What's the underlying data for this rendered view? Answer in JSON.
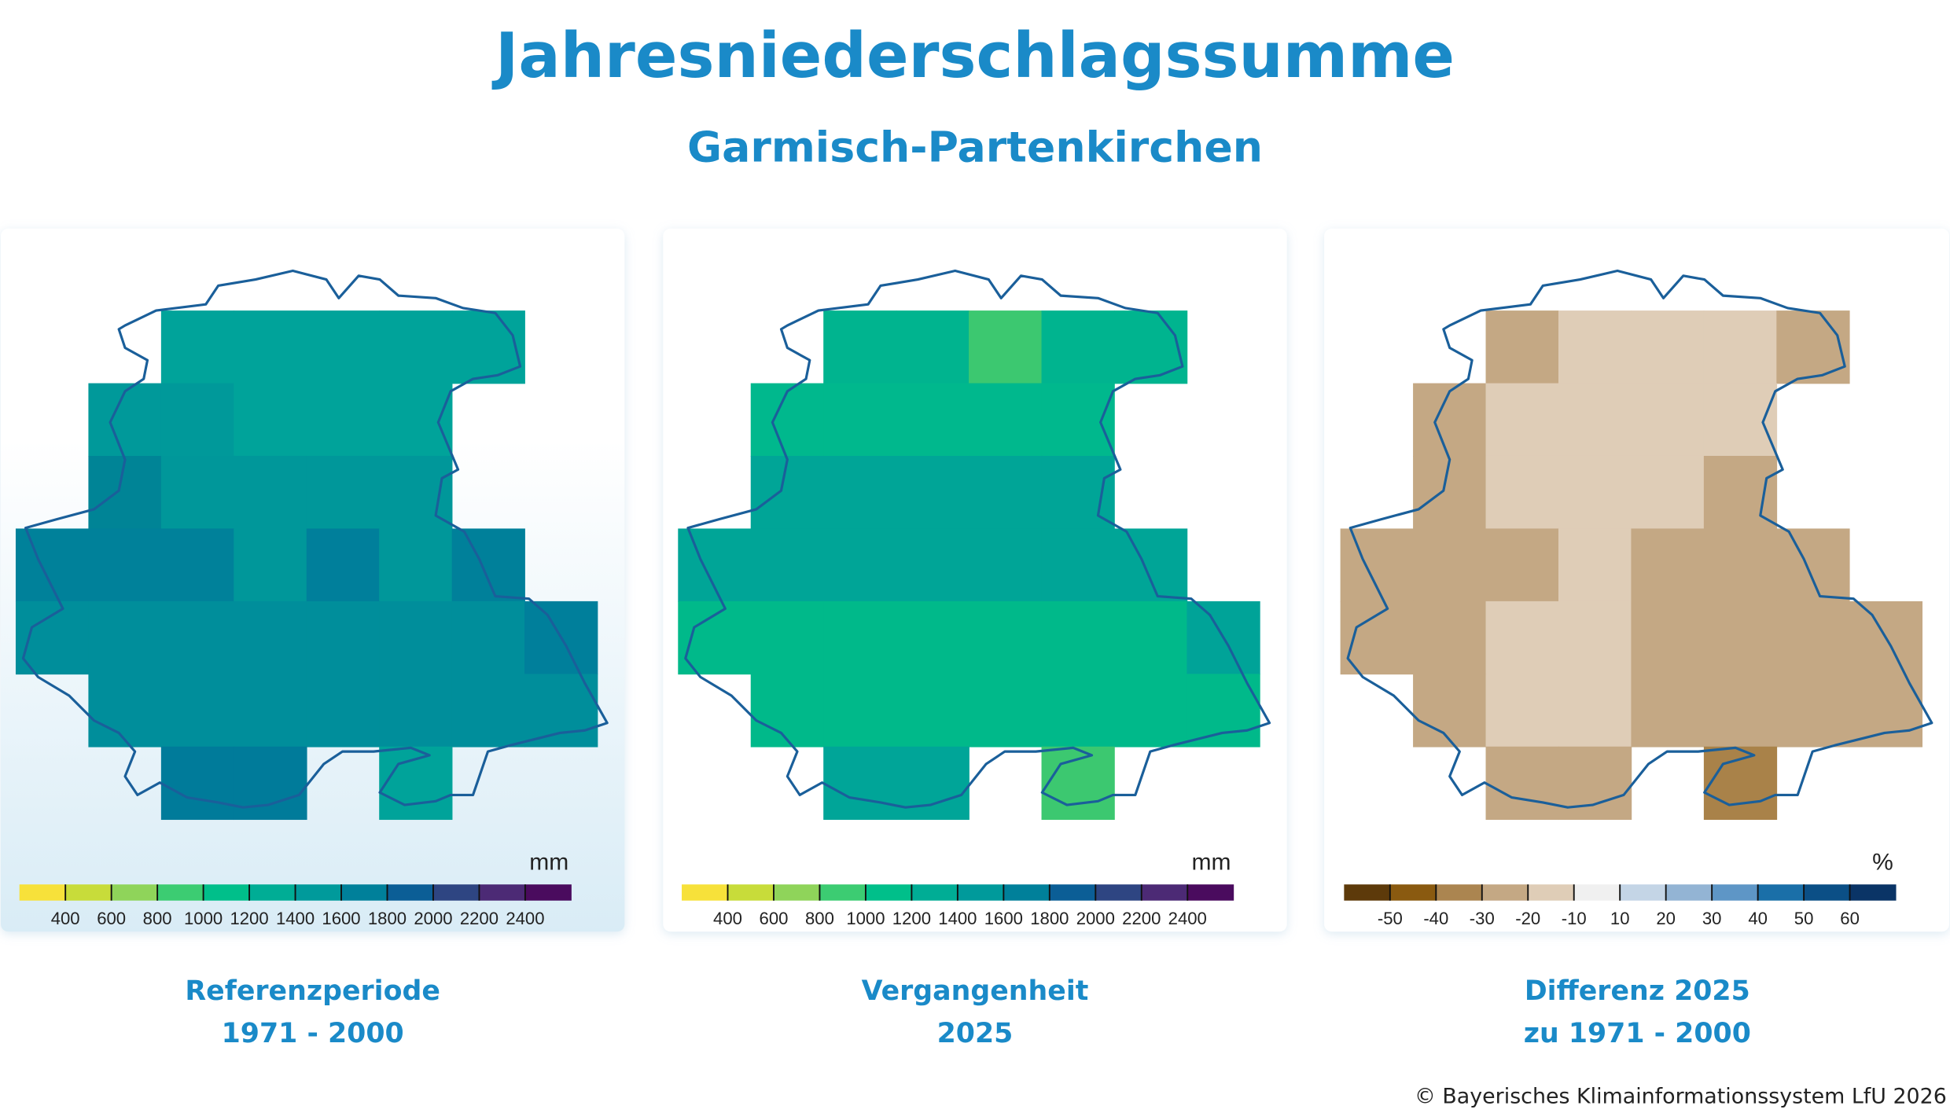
{
  "title": "Jahresniederschlagssumme",
  "subtitle": "Garmisch-Partenkirchen",
  "panels": [
    {
      "caption": [
        "Referenzperiode",
        "1971 - 2000"
      ],
      "unit": "mm",
      "colorbar": {
        "colors": [
          "#f7e13a",
          "#c8dc3a",
          "#8fd45a",
          "#3ccc72",
          "#00bf8a",
          "#00ad95",
          "#009a9b",
          "#00809a",
          "#0b5e96",
          "#2e4582",
          "#4c2a75",
          "#4a0b5e"
        ],
        "ticks": [
          400,
          600,
          800,
          1000,
          1200,
          1400,
          1600,
          1800,
          2000,
          2200,
          2400
        ]
      },
      "grid": [
        [
          null,
          null,
          "#00a39a",
          "#00a39a",
          "#00a39a",
          "#00a39a",
          "#00a39a",
          null
        ],
        [
          null,
          "#00999a",
          "#00999a",
          "#00a39a",
          "#00a39a",
          "#00a39a",
          null,
          null
        ],
        [
          null,
          "#008496",
          "#00979a",
          "#00979a",
          "#00979a",
          "#00979a",
          null,
          null
        ],
        [
          "#00819a",
          "#00819a",
          "#00819a",
          "#00979a",
          "#007f9b",
          "#00979a",
          "#00809a",
          null
        ],
        [
          "#008e9b",
          "#008e9b",
          "#008e9b",
          "#008e9b",
          "#008e9b",
          "#008e9b",
          "#008e9b",
          "#007f9b"
        ],
        [
          null,
          "#008e9b",
          "#008e9b",
          "#008e9b",
          "#008e9b",
          "#008e9b",
          "#008e9b",
          "#008e9b"
        ],
        [
          null,
          null,
          "#007b9a",
          "#007b9a",
          null,
          "#00a39a",
          null,
          null
        ]
      ]
    },
    {
      "caption": [
        "Vergangenheit",
        "2025"
      ],
      "unit": "mm",
      "colorbar": {
        "colors": [
          "#f7e13a",
          "#c8dc3a",
          "#8fd45a",
          "#3ccc72",
          "#00bf8a",
          "#00ad95",
          "#009a9b",
          "#00809a",
          "#0b5e96",
          "#2e4582",
          "#4c2a75",
          "#4a0b5e"
        ],
        "ticks": [
          400,
          600,
          800,
          1000,
          1200,
          1400,
          1600,
          1800,
          2000,
          2200,
          2400
        ]
      },
      "grid": [
        [
          null,
          null,
          "#00b48f",
          "#00b48f",
          "#3cc870",
          "#00b48f",
          "#00b48f",
          null
        ],
        [
          null,
          "#00b88d",
          "#00b88d",
          "#00b88d",
          "#00b88d",
          "#00b88d",
          null,
          null
        ],
        [
          null,
          "#00a597",
          "#00a597",
          "#00a597",
          "#00a597",
          "#00a597",
          null,
          null
        ],
        [
          "#00a597",
          "#00a597",
          "#00a597",
          "#00a597",
          "#00a597",
          "#00a597",
          "#00a597",
          null
        ],
        [
          "#00b98a",
          "#00b98a",
          "#00b98a",
          "#00b98a",
          "#00b98a",
          "#00b98a",
          "#00b98a",
          "#00a398"
        ],
        [
          null,
          "#00b98a",
          "#00b98a",
          "#00b98a",
          "#00b98a",
          "#00b98a",
          "#00b98a",
          "#00b98a"
        ],
        [
          null,
          null,
          "#00a598",
          "#00a598",
          null,
          "#3cc870",
          null,
          null
        ]
      ]
    },
    {
      "caption": [
        "Differenz 2025",
        "zu 1971 - 2000"
      ],
      "unit": "%",
      "colorbar": {
        "colors": [
          "#5d3a0a",
          "#8a5a10",
          "#ab8550",
          "#c4a884",
          "#dfcdb7",
          "#f0f0f0",
          "#c4d5e6",
          "#93b4d4",
          "#5e96c6",
          "#1a6fa8",
          "#0b4f86",
          "#0a3466"
        ],
        "ticks": [
          -50,
          -40,
          -30,
          -20,
          -10,
          10,
          20,
          30,
          40,
          50,
          60
        ]
      },
      "grid": [
        [
          null,
          null,
          "#c4a884",
          "#dfcdb7",
          "#dfcdb7",
          "#dfcdb7",
          "#c4a884",
          null
        ],
        [
          null,
          "#c4a884",
          "#dfcdb7",
          "#dfcdb7",
          "#dfcdb7",
          "#dfcdb7",
          null,
          null
        ],
        [
          null,
          "#c4a884",
          "#dfcdb7",
          "#dfcdb7",
          "#dfcdb7",
          "#c4a884",
          null,
          null
        ],
        [
          "#c4a884",
          "#c4a884",
          "#c4a884",
          "#dfcdb7",
          "#c4a884",
          "#c4a884",
          "#c4a884",
          null
        ],
        [
          "#c4a884",
          "#c4a884",
          "#dfcdb7",
          "#dfcdb7",
          "#c4a884",
          "#c4a884",
          "#c4a884",
          "#c4a884"
        ],
        [
          null,
          "#c4a884",
          "#dfcdb7",
          "#dfcdb7",
          "#c4a884",
          "#c4a884",
          "#c4a884",
          "#c4a884"
        ],
        [
          null,
          null,
          "#c4a884",
          "#c4a884",
          null,
          "#a98249",
          null,
          null
        ]
      ]
    }
  ],
  "footer": "© Bayerisches Klimainformationssystem LfU 2026"
}
